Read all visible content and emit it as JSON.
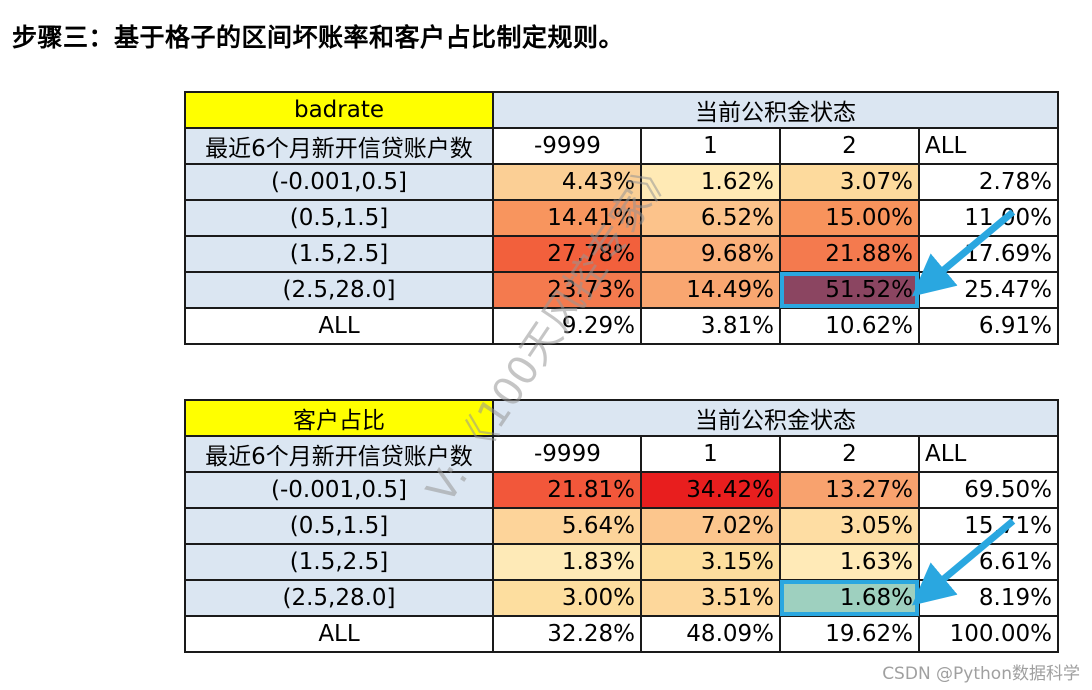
{
  "heading": "步骤三：基于格子的区间坏账率和客户占比制定规则。",
  "tables": [
    {
      "title": "badrate",
      "group_label": "当前公积金状态",
      "row_header": "最近6个月新开信贷账户数",
      "columns": [
        "-9999",
        "1",
        "2",
        "ALL"
      ],
      "rows": [
        {
          "label": "(-0.001,0.5]",
          "values": [
            "4.43%",
            "1.62%",
            "3.07%",
            "2.78%"
          ]
        },
        {
          "label": "(0.5,1.5]",
          "values": [
            "14.41%",
            "6.52%",
            "15.00%",
            "11.00%"
          ]
        },
        {
          "label": "(1.5,2.5]",
          "values": [
            "27.78%",
            "9.68%",
            "21.88%",
            "17.69%"
          ]
        },
        {
          "label": "(2.5,28.0]",
          "values": [
            "23.73%",
            "14.49%",
            "51.52%",
            "25.47%"
          ]
        },
        {
          "label": "ALL",
          "values": [
            "9.29%",
            "3.81%",
            "10.62%",
            "6.91%"
          ]
        }
      ],
      "cell_colors": [
        [
          "#fbcf95",
          "#ffeab5",
          "#fdda9d"
        ],
        [
          "#f8955e",
          "#fcc38b",
          "#f8935c"
        ],
        [
          "#f2603c",
          "#fbb07a",
          "#f47a4e"
        ],
        [
          "#f47a4e",
          "#f9a670",
          "#8b4561"
        ]
      ],
      "highlight_cell": [
        3,
        2
      ]
    },
    {
      "title": "客户占比",
      "group_label": "当前公积金状态",
      "row_header": "最近6个月新开信贷账户数",
      "columns": [
        "-9999",
        "1",
        "2",
        "ALL"
      ],
      "rows": [
        {
          "label": "(-0.001,0.5]",
          "values": [
            "21.81%",
            "34.42%",
            "13.27%",
            "69.50%"
          ]
        },
        {
          "label": "(0.5,1.5]",
          "values": [
            "5.64%",
            "7.02%",
            "3.05%",
            "15.71%"
          ]
        },
        {
          "label": "(1.5,2.5]",
          "values": [
            "1.83%",
            "3.15%",
            "1.63%",
            "6.61%"
          ]
        },
        {
          "label": "(2.5,28.0]",
          "values": [
            "3.00%",
            "3.51%",
            "1.68%",
            "8.19%"
          ]
        },
        {
          "label": "ALL",
          "values": [
            "32.28%",
            "48.09%",
            "19.62%",
            "100.00%"
          ]
        }
      ],
      "cell_colors": [
        [
          "#f2573a",
          "#e81e1e",
          "#f8a26e"
        ],
        [
          "#fdd49a",
          "#fcc68d",
          "#feddA3"
        ],
        [
          "#feeab7",
          "#fdde9e",
          "#ffeab7"
        ],
        [
          "#fdde9f",
          "#fdd79b",
          "#9ed0bf"
        ]
      ],
      "highlight_cell": [
        3,
        2
      ]
    }
  ],
  "watermark": "V: 《100天风控专家》",
  "footer_mark": "CSDN @Python数据科学",
  "accent_color": "#2aa7e0"
}
